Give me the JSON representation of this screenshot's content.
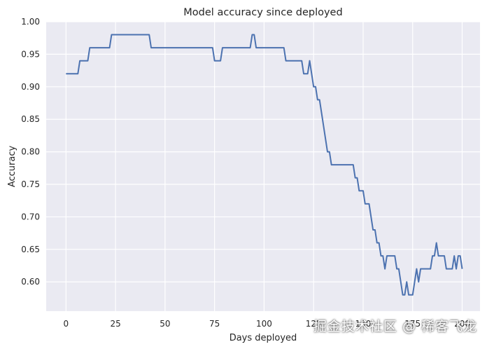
{
  "chart_data": {
    "type": "line",
    "title": "Model accuracy since deployed",
    "xlabel": "Days deployed",
    "ylabel": "Accuracy",
    "xlim": [
      -10,
      209
    ],
    "ylim": [
      0.555,
      1.0
    ],
    "xticks": [
      0,
      25,
      50,
      75,
      100,
      125,
      150,
      175,
      200
    ],
    "yticks": [
      0.6,
      0.65,
      0.7,
      0.75,
      0.8,
      0.85,
      0.9,
      0.95,
      1.0
    ],
    "grid": true,
    "line_color": "#4c72b0",
    "background_color": "#eaeaf2",
    "series": [
      {
        "x": [
          0,
          6,
          7,
          11,
          12,
          22,
          23,
          42,
          43,
          74,
          75,
          78,
          79,
          93,
          94,
          95,
          96,
          110,
          111,
          119,
          120,
          122,
          123,
          124,
          125,
          126,
          127,
          128,
          129,
          130,
          131,
          132,
          133,
          134,
          135,
          136,
          145,
          146,
          147,
          148,
          149,
          150,
          151,
          152,
          153,
          154,
          155,
          156,
          157,
          158,
          159,
          160,
          161,
          162,
          166,
          167,
          168,
          169,
          170,
          171,
          172,
          173,
          174,
          175,
          176,
          177,
          178,
          179,
          180,
          181,
          184,
          185,
          186,
          187,
          188,
          191,
          192,
          195,
          196,
          197,
          198,
          199,
          200
        ],
        "y": [
          0.92,
          0.92,
          0.94,
          0.94,
          0.96,
          0.96,
          0.98,
          0.98,
          0.96,
          0.96,
          0.94,
          0.94,
          0.96,
          0.96,
          0.98,
          0.98,
          0.96,
          0.96,
          0.94,
          0.94,
          0.92,
          0.92,
          0.94,
          0.92,
          0.9,
          0.9,
          0.88,
          0.88,
          0.86,
          0.84,
          0.82,
          0.8,
          0.8,
          0.78,
          0.78,
          0.78,
          0.78,
          0.76,
          0.76,
          0.74,
          0.74,
          0.74,
          0.72,
          0.72,
          0.72,
          0.7,
          0.68,
          0.68,
          0.66,
          0.66,
          0.64,
          0.64,
          0.62,
          0.64,
          0.64,
          0.62,
          0.62,
          0.6,
          0.58,
          0.58,
          0.6,
          0.58,
          0.58,
          0.58,
          0.6,
          0.62,
          0.6,
          0.62,
          0.62,
          0.62,
          0.62,
          0.64,
          0.64,
          0.66,
          0.64,
          0.64,
          0.62,
          0.62,
          0.64,
          0.62,
          0.64,
          0.64,
          0.62
        ]
      }
    ]
  },
  "watermark": "掘金技术社区 @ 稀客飞龙"
}
